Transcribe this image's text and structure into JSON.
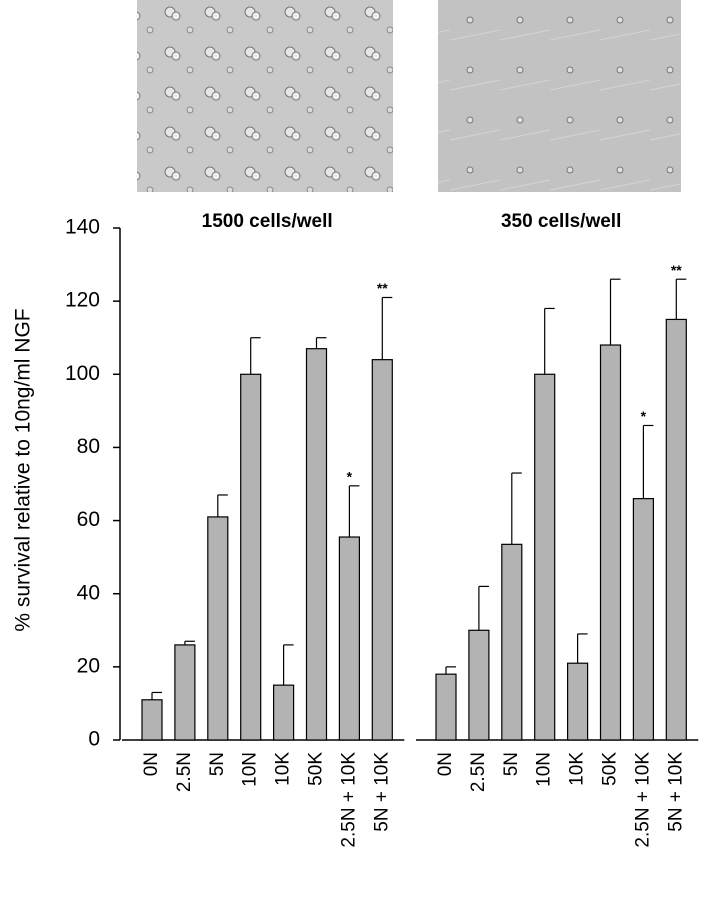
{
  "chart_data": {
    "type": "bar",
    "y_label": "% survival relative to 10ng/ml NGF",
    "ylim": [
      0,
      140
    ],
    "yticks": [
      0,
      20,
      40,
      60,
      80,
      100,
      120,
      140
    ],
    "color": "#b3b3b3",
    "groups": [
      {
        "title": "1500 cells/well",
        "categories": [
          "0N",
          "2.5N",
          "5N",
          "10N",
          "10K",
          "50K",
          "2.5N + 10K",
          "5N + 10K"
        ],
        "values": [
          11,
          26,
          61,
          100,
          15,
          107,
          55.5,
          104
        ],
        "errors": [
          2,
          1,
          6,
          10,
          11,
          3,
          14,
          17
        ],
        "annotations": [
          null,
          null,
          null,
          null,
          null,
          null,
          "*",
          "**"
        ]
      },
      {
        "title": "350 cells/well",
        "categories": [
          "0N",
          "2.5N",
          "5N",
          "10N",
          "10K",
          "50K",
          "2.5N + 10K",
          "5N + 10K"
        ],
        "values": [
          18,
          30,
          53.5,
          100,
          21,
          108,
          66,
          115
        ],
        "errors": [
          2,
          12,
          19.5,
          18,
          8,
          18,
          20,
          11
        ],
        "annotations": [
          null,
          null,
          null,
          null,
          null,
          null,
          "*",
          "**"
        ]
      }
    ]
  }
}
